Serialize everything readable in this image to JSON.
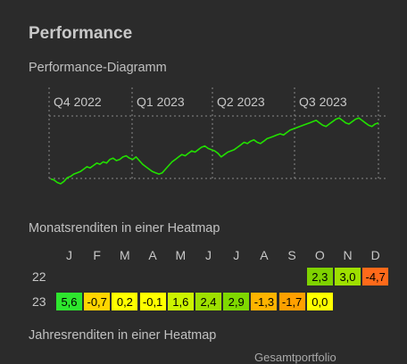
{
  "page": {
    "title": "Performance",
    "chart_section_label": "Performance-Diagramm",
    "heatmap_section_label": "Monatsrenditen in einer Heatmap",
    "yearly_section_label": "Jahresrenditen in einer Heatmap",
    "cutoff_text": "Gesamtportfolio"
  },
  "chart_data": {
    "type": "line",
    "quarters": [
      "Q4 2022",
      "Q1 2023",
      "Q2 2023",
      "Q3 2023"
    ],
    "line_color": "#22e000",
    "series": [
      {
        "x": [
          0,
          1,
          2,
          3,
          4,
          5,
          6,
          7,
          8,
          9,
          10,
          11,
          12,
          13,
          14,
          15,
          16,
          17,
          18,
          19,
          20,
          21,
          22,
          23,
          24,
          25,
          26,
          27,
          28,
          29,
          30,
          31,
          32,
          33,
          34,
          35,
          36,
          37,
          38,
          39,
          40,
          41,
          42,
          43,
          44,
          45,
          46,
          47,
          48,
          49,
          50,
          51,
          52,
          53,
          54,
          55,
          56,
          57,
          58,
          59,
          60,
          61,
          62,
          63,
          64,
          65,
          66,
          67,
          68,
          69,
          70,
          71,
          72,
          73,
          74,
          75,
          76,
          77,
          78,
          79,
          80,
          81,
          82,
          83,
          84,
          85,
          86,
          87,
          88,
          89,
          90,
          91,
          92,
          93,
          94,
          95,
          96,
          97,
          98,
          99,
          100
        ],
        "values": [
          4,
          3,
          1,
          0,
          2,
          5,
          6,
          8,
          9,
          10,
          12,
          14,
          13,
          15,
          17,
          16,
          18,
          17,
          20,
          21,
          19,
          20,
          22,
          23,
          21,
          20,
          22,
          19,
          16,
          14,
          12,
          10,
          9,
          8,
          9,
          12,
          15,
          18,
          20,
          22,
          24,
          23,
          25,
          27,
          26,
          28,
          30,
          31,
          29,
          28,
          27,
          25,
          22,
          24,
          26,
          27,
          28,
          30,
          32,
          34,
          33,
          35,
          36,
          34,
          33,
          35,
          37,
          38,
          39,
          40,
          41,
          40,
          42,
          44,
          45,
          46,
          47,
          48,
          49,
          50,
          51,
          52,
          50,
          48,
          47,
          49,
          51,
          53,
          54,
          52,
          50,
          49,
          51,
          53,
          54,
          52,
          50,
          48,
          47,
          49,
          50
        ]
      }
    ],
    "ylim": [
      0,
      60
    ]
  },
  "heatmap": {
    "months": [
      "J",
      "F",
      "M",
      "A",
      "M",
      "J",
      "J",
      "A",
      "S",
      "O",
      "N",
      "D"
    ],
    "rows": [
      {
        "year": "22",
        "cells": [
          {
            "month_index": 9,
            "value": "2,3",
            "color": "#7fd200"
          },
          {
            "month_index": 10,
            "value": "3,0",
            "color": "#9ee000"
          },
          {
            "month_index": 11,
            "value": "-4,7",
            "color": "#ff6a1a"
          }
        ]
      },
      {
        "year": "23",
        "cells": [
          {
            "month_index": 0,
            "value": "5,6",
            "color": "#2ee62e"
          },
          {
            "month_index": 1,
            "value": "-0,7",
            "color": "#ffd500"
          },
          {
            "month_index": 2,
            "value": "0,2",
            "color": "#ffff00"
          },
          {
            "month_index": 3,
            "value": "-0,1",
            "color": "#ffff00"
          },
          {
            "month_index": 4,
            "value": "1,6",
            "color": "#ccf400"
          },
          {
            "month_index": 5,
            "value": "2,4",
            "color": "#9ee000"
          },
          {
            "month_index": 6,
            "value": "2,9",
            "color": "#7fd800"
          },
          {
            "month_index": 7,
            "value": "-1,3",
            "color": "#ffb400"
          },
          {
            "month_index": 8,
            "value": "-1,7",
            "color": "#ffa000"
          },
          {
            "month_index": 9,
            "value": "0,0",
            "color": "#ffff00"
          }
        ]
      }
    ]
  }
}
